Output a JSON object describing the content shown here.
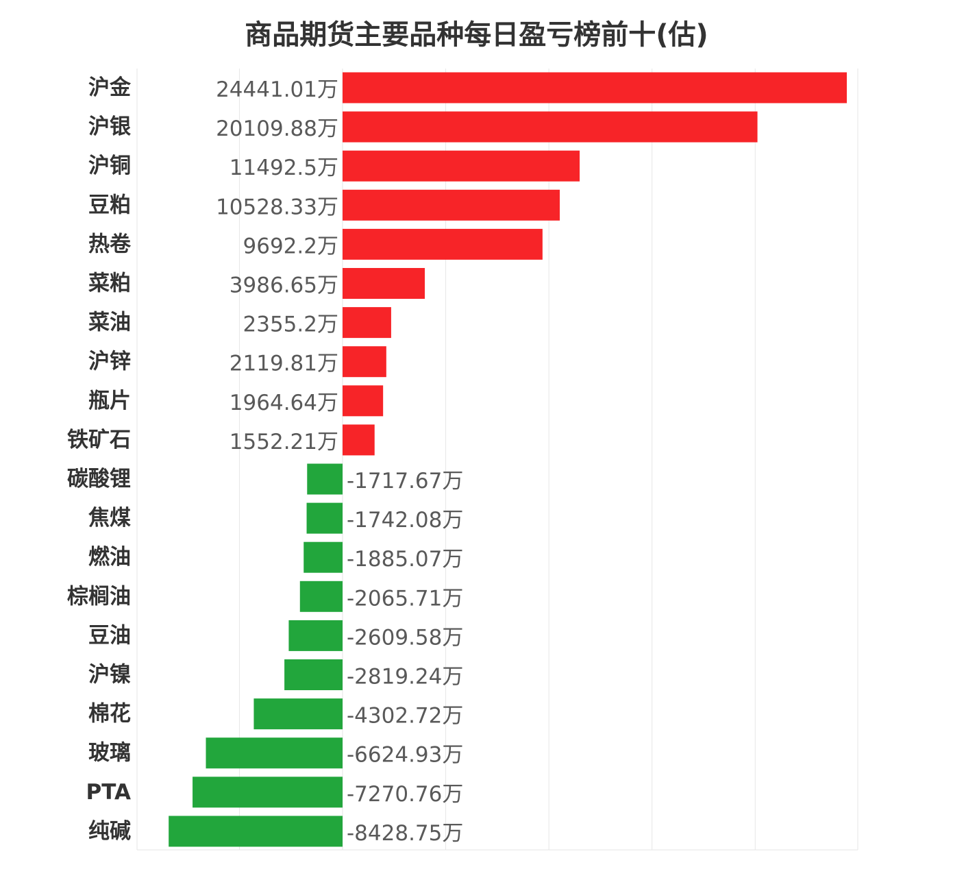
{
  "chart_data": {
    "type": "bar",
    "orientation": "horizontal",
    "title": "商品期货主要品种每日盈亏榜前十(估)",
    "unit_suffix": "万",
    "xlim": [
      -10000,
      25000
    ],
    "grid": true,
    "colors": {
      "positive": "#f72428",
      "negative": "#22a63c"
    },
    "categories": [
      "沪金",
      "沪银",
      "沪铜",
      "豆粕",
      "热卷",
      "菜粕",
      "菜油",
      "沪锌",
      "瓶片",
      "铁矿石",
      "碳酸锂",
      "焦煤",
      "燃油",
      "棕榈油",
      "豆油",
      "沪镍",
      "棉花",
      "玻璃",
      "PTA",
      "纯碱"
    ],
    "values": [
      24441.01,
      20109.88,
      11492.5,
      10528.33,
      9692.2,
      3986.65,
      2355.2,
      2119.81,
      1964.64,
      1552.21,
      -1717.67,
      -1742.08,
      -1885.07,
      -2065.71,
      -2609.58,
      -2819.24,
      -4302.72,
      -6624.93,
      -7270.76,
      -8428.75
    ],
    "value_labels": [
      "24441.01万",
      "20109.88万",
      "11492.5万",
      "10528.33万",
      "9692.2万",
      "3986.65万",
      "2355.2万",
      "2119.81万",
      "1964.64万",
      "1552.21万",
      "-1717.67万",
      "-1742.08万",
      "-1885.07万",
      "-2065.71万",
      "-2609.58万",
      "-2819.24万",
      "-4302.72万",
      "-6624.93万",
      "-7270.76万",
      "-8428.75万"
    ]
  }
}
